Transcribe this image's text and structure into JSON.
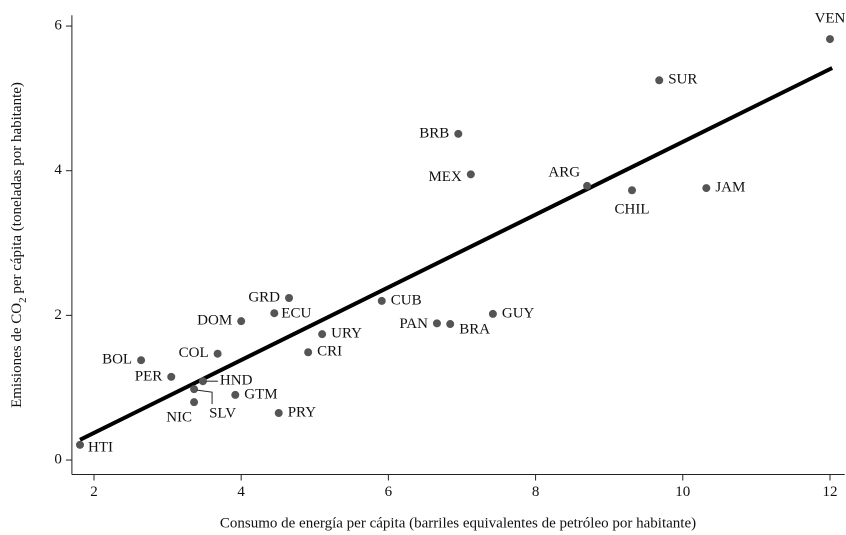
{
  "chart_data": {
    "type": "scatter",
    "x_label": "Consumo de energía per cápita (barriles equivalentes de petróleo por habitante)",
    "y_label": [
      "Emisiones de CO",
      "2",
      " per cápita (toneladas por habitante)"
    ],
    "color": "#555555",
    "labels": [
      "VEN",
      "SUR",
      "BRB",
      "MEX",
      "ARG",
      "CHIL",
      "JAM",
      "CUB",
      "GUY",
      "PAN",
      "BRA",
      "GRD",
      "ECU",
      "DOM",
      "URY",
      "CRI",
      "COL",
      "BOL",
      "PER",
      "HND",
      "GTM",
      "SLV",
      "NIC",
      "PRY",
      "HTI"
    ],
    "x": [
      12.0,
      9.68,
      6.95,
      7.12,
      8.7,
      9.31,
      10.32,
      5.91,
      7.42,
      6.66,
      6.84,
      4.65,
      4.45,
      4.0,
      5.1,
      4.91,
      3.68,
      2.64,
      3.05,
      3.48,
      3.92,
      3.36,
      3.36,
      4.51,
      1.81
    ],
    "values": [
      5.82,
      5.25,
      4.51,
      3.95,
      3.79,
      3.73,
      3.76,
      2.2,
      2.02,
      1.89,
      1.88,
      2.24,
      2.03,
      1.92,
      1.74,
      1.49,
      1.47,
      1.38,
      1.15,
      1.09,
      0.9,
      0.98,
      0.8,
      0.65,
      0.21
    ],
    "fit_line": {
      "x": [
        1.81,
        12.03
      ],
      "values": [
        0.28,
        5.42
      ],
      "color": "#000000"
    },
    "xlim": [
      1.7,
      12.2
    ],
    "ylim": [
      -0.2,
      6.15
    ],
    "xticks": [
      2,
      4,
      6,
      8,
      10,
      12
    ],
    "yticks": [
      0,
      2,
      4,
      6
    ]
  }
}
